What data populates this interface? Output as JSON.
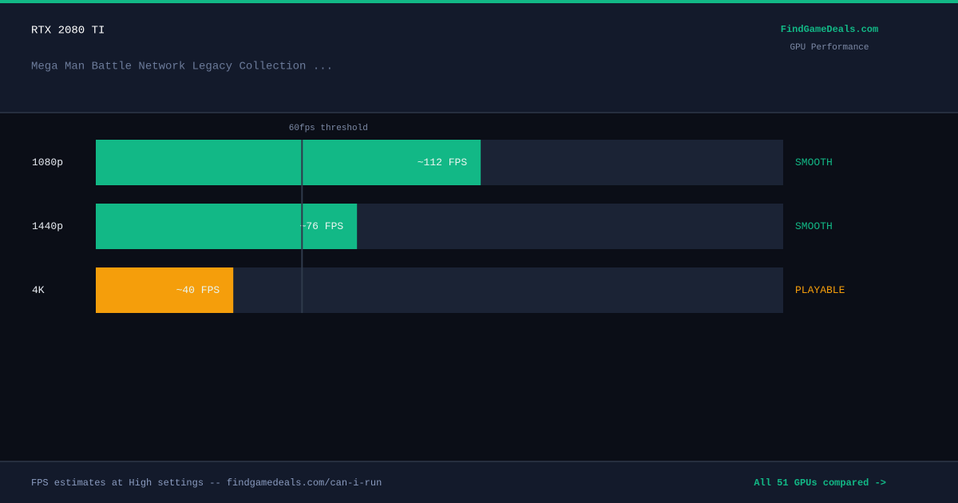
{
  "header": {
    "title": "RTX 2080 TI",
    "subtitle": "Mega Man Battle Network Legacy Collection ...",
    "brand": "FindGameDeals.com",
    "brand_caption": "GPU Performance"
  },
  "chart_data": {
    "type": "bar",
    "orientation": "horizontal",
    "categories": [
      "1080p",
      "1440p",
      "4K"
    ],
    "values": [
      112,
      76,
      40
    ],
    "value_labels": [
      "~112 FPS",
      "~76 FPS",
      "~40 FPS"
    ],
    "colors": [
      "#12b886",
      "#12b886",
      "#f59e0b"
    ],
    "status_labels": [
      "SMOOTH",
      "SMOOTH",
      "PLAYABLE"
    ],
    "xlim": [
      0,
      200
    ],
    "threshold": {
      "value": 60,
      "label": "60fps threshold"
    }
  },
  "footer": {
    "note": "FPS estimates at High settings -- findgamedeals.com/can-i-run",
    "link": "All 51 GPUs compared ->"
  }
}
